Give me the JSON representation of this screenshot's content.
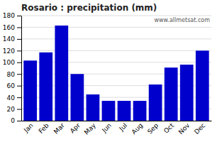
{
  "chart_data": {
    "type": "bar",
    "title": "Rosario : precipitation (mm)",
    "categories": [
      "Jan",
      "Feb",
      "Mar",
      "Apr",
      "May",
      "Jun",
      "Jul",
      "Aug",
      "Sep",
      "Oct",
      "Nov",
      "Dec"
    ],
    "values": [
      103,
      117,
      163,
      80,
      45,
      34,
      34,
      34,
      62,
      91,
      96,
      120
    ],
    "color": "#0000cc",
    "ylim": [
      0,
      180
    ],
    "yticks": [
      0,
      20,
      40,
      60,
      80,
      100,
      120,
      140,
      160,
      180
    ],
    "grid": true,
    "annotations": [
      "www.allmetsat.com"
    ]
  }
}
